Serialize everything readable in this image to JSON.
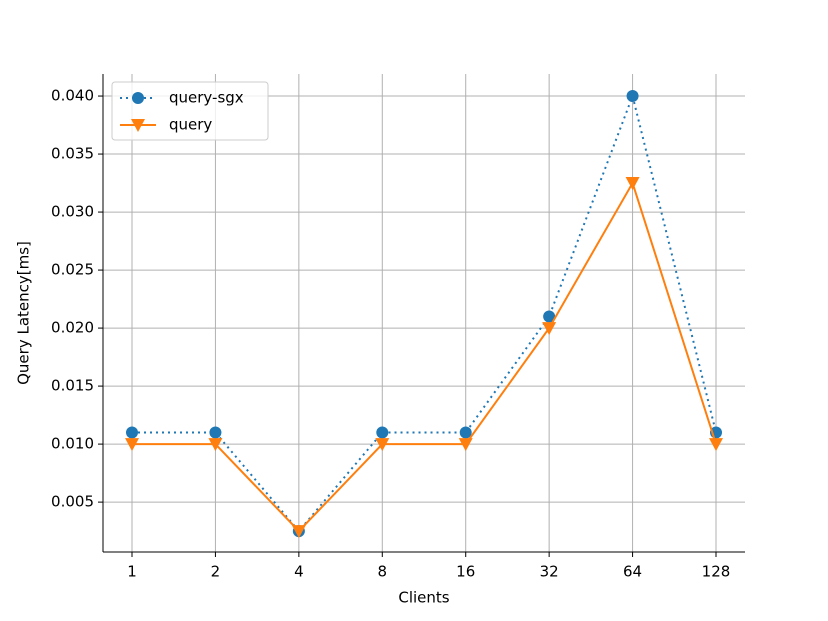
{
  "chart_data": {
    "type": "line",
    "x_label": "Clients",
    "y_label": "Query Latency[ms]",
    "categories": [
      "1",
      "2",
      "4",
      "8",
      "16",
      "32",
      "64",
      "128"
    ],
    "series": [
      {
        "name": "query-sgx",
        "color": "#1f77b4",
        "linestyle": "dotted",
        "marker": "circle",
        "values": [
          0.011,
          0.011,
          0.0025,
          0.011,
          0.011,
          0.021,
          0.04,
          0.011
        ]
      },
      {
        "name": "query",
        "color": "#ff7f0e",
        "linestyle": "solid",
        "marker": "triangle-down",
        "values": [
          0.01,
          0.01,
          0.0025,
          0.01,
          0.01,
          0.02,
          0.0325,
          0.01
        ]
      }
    ],
    "ylim": [
      0.0007,
      0.0419
    ],
    "yticks": [
      0.005,
      {
        "value": 0.01,
        "label": "0.010"
      },
      0.015,
      {
        "value": 0.02,
        "label": "0.020"
      },
      0.025,
      {
        "value": 0.03,
        "label": "0.030"
      },
      0.035,
      {
        "value": 0.04,
        "label": "0.040"
      }
    ],
    "grid": true,
    "legend": "upper-left"
  }
}
